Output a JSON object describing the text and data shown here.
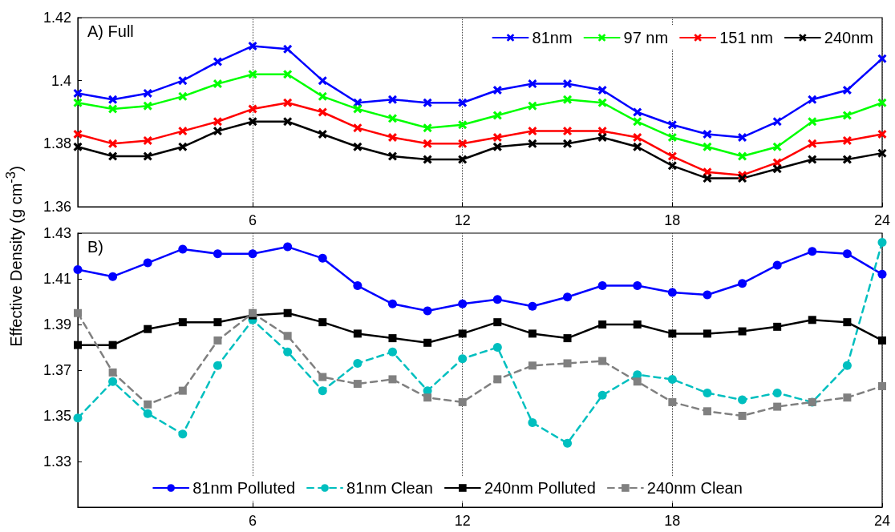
{
  "chart_data": [
    {
      "type": "line",
      "title": "A) Full",
      "xlim": [
        1,
        24
      ],
      "xticks": [
        6,
        12,
        18,
        24
      ],
      "ylim": [
        1.36,
        1.42
      ],
      "yticks": [
        1.36,
        1.38,
        1.4,
        1.42
      ],
      "grid": "x",
      "legend": "top right",
      "marker": "cross",
      "line_style": "solid",
      "x": [
        1,
        2,
        3,
        4,
        5,
        6,
        7,
        8,
        9,
        10,
        11,
        12,
        13,
        14,
        15,
        16,
        17,
        18,
        19,
        20,
        21,
        22,
        23,
        24
      ],
      "series": [
        {
          "name": "81nm",
          "color": "#0000ff",
          "values": [
            1.396,
            1.394,
            1.396,
            1.4,
            1.406,
            1.411,
            1.41,
            1.4,
            1.393,
            1.394,
            1.393,
            1.393,
            1.397,
            1.399,
            1.399,
            1.397,
            1.39,
            1.386,
            1.383,
            1.382,
            1.387,
            1.394,
            1.397,
            1.407
          ]
        },
        {
          "name": "97 nm",
          "color": "#00ff00",
          "values": [
            1.393,
            1.391,
            1.392,
            1.395,
            1.399,
            1.402,
            1.402,
            1.395,
            1.391,
            1.388,
            1.385,
            1.386,
            1.389,
            1.392,
            1.394,
            1.393,
            1.387,
            1.382,
            1.379,
            1.376,
            1.379,
            1.387,
            1.389,
            1.393
          ]
        },
        {
          "name": "151 nm",
          "color": "#ff0000",
          "values": [
            1.383,
            1.38,
            1.381,
            1.384,
            1.387,
            1.391,
            1.393,
            1.39,
            1.385,
            1.382,
            1.38,
            1.38,
            1.382,
            1.384,
            1.384,
            1.384,
            1.382,
            1.376,
            1.371,
            1.37,
            1.374,
            1.38,
            1.381,
            1.383
          ]
        },
        {
          "name": "240nm",
          "color": "#000000",
          "values": [
            1.379,
            1.376,
            1.376,
            1.379,
            1.384,
            1.387,
            1.387,
            1.383,
            1.379,
            1.376,
            1.375,
            1.375,
            1.379,
            1.38,
            1.38,
            1.382,
            1.379,
            1.373,
            1.369,
            1.369,
            1.372,
            1.375,
            1.375,
            1.377
          ]
        }
      ]
    },
    {
      "type": "line",
      "title": "B)",
      "ylabel": "Effective Density (g cm$^{-3}$)",
      "xlim": [
        1,
        24
      ],
      "xticks": [
        6,
        12,
        18,
        24
      ],
      "ylim": [
        1.31,
        1.43
      ],
      "yticks": [
        1.33,
        1.35,
        1.37,
        1.39,
        1.41,
        1.43
      ],
      "grid": "x",
      "legend": "bottom",
      "x": [
        1,
        2,
        3,
        4,
        5,
        6,
        7,
        8,
        9,
        10,
        11,
        12,
        13,
        14,
        15,
        16,
        17,
        18,
        19,
        20,
        21,
        22,
        23,
        24
      ],
      "series": [
        {
          "name": "81nm Polluted",
          "color": "#0000ff",
          "marker": "circle",
          "line_style": "solid",
          "values": [
            1.414,
            1.411,
            1.417,
            1.423,
            1.421,
            1.421,
            1.424,
            1.419,
            1.407,
            1.399,
            1.396,
            1.399,
            1.401,
            1.398,
            1.402,
            1.407,
            1.407,
            1.404,
            1.403,
            1.408,
            1.416,
            1.422,
            1.421,
            1.412
          ]
        },
        {
          "name": "81nm Clean",
          "color": "#00bfbf",
          "marker": "circle",
          "line_style": "dashed",
          "values": [
            1.349,
            1.365,
            1.351,
            1.342,
            1.372,
            1.392,
            1.378,
            1.361,
            1.373,
            1.378,
            1.361,
            1.375,
            1.38,
            1.347,
            1.338,
            1.359,
            1.368,
            1.366,
            1.36,
            1.357,
            1.36,
            1.356,
            1.372,
            1.426
          ]
        },
        {
          "name": "240nm Polluted",
          "color": "#000000",
          "marker": "square",
          "line_style": "solid",
          "values": [
            1.381,
            1.381,
            1.388,
            1.391,
            1.391,
            1.394,
            1.395,
            1.391,
            1.386,
            1.384,
            1.382,
            1.386,
            1.391,
            1.386,
            1.384,
            1.39,
            1.39,
            1.386,
            1.386,
            1.387,
            1.389,
            1.392,
            1.391,
            1.383
          ]
        },
        {
          "name": "240nm Clean",
          "color": "#808080",
          "marker": "square",
          "line_style": "dashed",
          "values": [
            1.395,
            1.369,
            1.355,
            1.361,
            1.383,
            1.395,
            1.385,
            1.367,
            1.364,
            1.366,
            1.358,
            1.356,
            1.366,
            1.372,
            1.373,
            1.374,
            1.365,
            1.356,
            1.352,
            1.35,
            1.354,
            1.356,
            1.358,
            1.363
          ]
        }
      ]
    }
  ]
}
